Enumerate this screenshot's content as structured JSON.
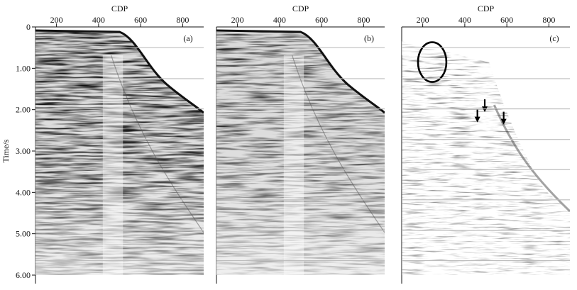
{
  "figure": {
    "y_axis_label": "Time/s",
    "y_ticks": [
      "0",
      "1.00",
      "2.00",
      "3.00",
      "4.00",
      "5.00",
      "6.00"
    ],
    "panels": [
      {
        "tag": "(a)",
        "x_axis_label": "CDP",
        "x_ticks": [
          "200",
          "400",
          "600",
          "800"
        ]
      },
      {
        "tag": "(b)",
        "x_axis_label": "CDP",
        "x_ticks": [
          "200",
          "400",
          "600",
          "800"
        ]
      },
      {
        "tag": "(c)",
        "x_axis_label": "CDP",
        "x_ticks": [
          "200",
          "400",
          "600",
          "800"
        ]
      }
    ],
    "colors": {
      "ink": "#111111",
      "gridline": "#bdbdbd"
    }
  },
  "chart_data": {
    "type": "heatmap",
    "x_range": [
      100,
      900
    ],
    "y_range": [
      0,
      6.0
    ],
    "panel_count": 3
  }
}
